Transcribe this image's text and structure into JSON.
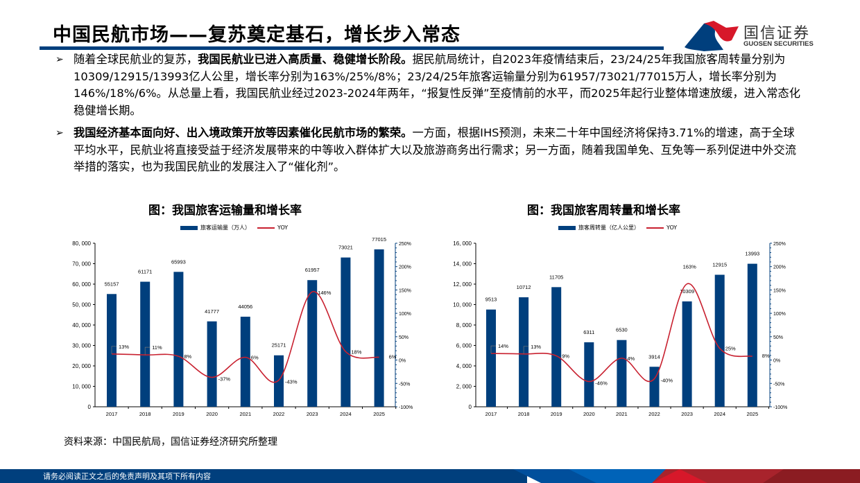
{
  "header": {
    "title": "中国民航市场——复苏奠定基石，增长步入常态",
    "logo_cn": "国信证券",
    "logo_en": "GUOSEN SECURITIES"
  },
  "bullets": [
    {
      "marker": "➢",
      "lead": "随着全球民航业的复苏，",
      "bold": "我国民航业已进入高质量、稳健增长阶段。",
      "rest": "据民航局统计，自2023年疫情结束后，23/24/25年我国旅客周转量分别为10309/12915/13993亿人公里，增长率分别为163%/25%/8%；23/24/25年旅客运输量分别为61957/73021/77015万人，增长率分别为146%/18%/6%。从总量上看，我国民航业经过2023-2024年两年，“报复性反弹”至疫情前的水平，而2025年起行业整体增速放缓，进入常态化稳健增长期。"
    },
    {
      "marker": "➢",
      "lead": "",
      "bold": "我国经济基本面向好、出入境政策开放等因素催化民航市场的繁荣。",
      "rest": "一方面，根据IHS预测，未来二十年中国经济将保持3.71%的增速，高于全球平均水平，民航业将直接受益于经济发展带来的中等收入群体扩大以及旅游商务出行需求；另一方面，随着我国单免、互免等一系列促进中外交流举措的落实，也为我国民航业的发展注入了“催化剂”。"
    }
  ],
  "source": "资料来源：中国民航局，国信证券经济研究所整理",
  "footer": {
    "disclaimer": "请务必阅读正文之后的免责声明及其项下所有内容"
  },
  "colors": {
    "brand_blue": "#003f7d",
    "line_red": "#c8202f",
    "logo_red": "#d7182a"
  },
  "chart_data": [
    {
      "type": "bar",
      "title": "图：我国旅客运输量和增长率",
      "categories": [
        "2017",
        "2018",
        "2019",
        "2020",
        "2021",
        "2022",
        "2023",
        "2024",
        "2025"
      ],
      "series": [
        {
          "name": "旅客运输量（万人）",
          "type": "bar",
          "axis": "left",
          "values": [
            55157,
            61171,
            65993,
            41777,
            44056,
            25171,
            61957,
            73021,
            77015
          ]
        },
        {
          "name": "YOY",
          "type": "line",
          "axis": "right",
          "values": [
            13,
            11,
            8,
            -37,
            6,
            -43,
            146,
            18,
            6
          ],
          "labels": [
            "13%",
            "11%",
            "8%",
            "-37%",
            "6%",
            "-43%",
            "146%",
            "18%",
            "6%"
          ]
        }
      ],
      "left_axis": {
        "min": 0,
        "max": 80000,
        "ticks": [
          "0",
          "10, 000",
          "20, 000",
          "30, 000",
          "40, 000",
          "50, 000",
          "60, 000",
          "70, 000",
          "80, 000"
        ]
      },
      "right_axis": {
        "min": -100,
        "max": 250,
        "ticks": [
          "-100%",
          "-50%",
          "0%",
          "50%",
          "100%",
          "150%",
          "200%",
          "250%"
        ]
      },
      "legend_position": "top"
    },
    {
      "type": "bar",
      "title": "图：我国旅客周转量和增长率",
      "categories": [
        "2017",
        "2018",
        "2019",
        "2020",
        "2021",
        "2022",
        "2023",
        "2024",
        "2025"
      ],
      "series": [
        {
          "name": "旅客周转量（亿人公里）",
          "type": "bar",
          "axis": "left",
          "values": [
            9513,
            10712,
            11705,
            6311,
            6530,
            3914,
            10309,
            12915,
            13993
          ]
        },
        {
          "name": "YOY",
          "type": "line",
          "axis": "right",
          "values": [
            14,
            13,
            9,
            -46,
            4,
            -40,
            163,
            25,
            8
          ],
          "labels": [
            "14%",
            "13%",
            "9%",
            "-46%",
            "4%",
            "-40%",
            "163%",
            "25%",
            "8%"
          ]
        }
      ],
      "left_axis": {
        "min": 0,
        "max": 16000,
        "ticks": [
          "0",
          "2, 000",
          "4, 000",
          "6, 000",
          "8, 000",
          "10, 000",
          "12, 000",
          "14, 000",
          "16, 000"
        ]
      },
      "right_axis": {
        "min": -100,
        "max": 250,
        "ticks": [
          "-100%",
          "-50%",
          "0%",
          "50%",
          "100%",
          "150%",
          "200%",
          "250%"
        ]
      },
      "legend_position": "top"
    }
  ]
}
